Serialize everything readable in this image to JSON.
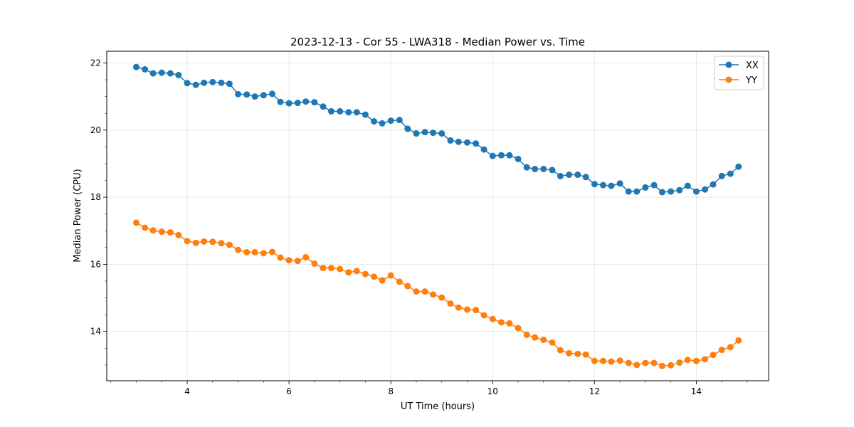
{
  "chart_data": {
    "type": "line",
    "title": "2023-12-13 - Cor 55 - LWA318 - Median Power vs. Time",
    "xlabel": "UT Time (hours)",
    "ylabel": "Median Power (CPU)",
    "xlim": [
      2.42,
      15.42
    ],
    "ylim": [
      12.53,
      22.35
    ],
    "xticks": [
      4,
      6,
      8,
      10,
      12,
      14
    ],
    "yticks": [
      14,
      16,
      18,
      20,
      22
    ],
    "grid": true,
    "legend_position": "top-right",
    "x": [
      3.0,
      3.17,
      3.33,
      3.5,
      3.67,
      3.83,
      4.0,
      4.17,
      4.33,
      4.5,
      4.67,
      4.83,
      5.0,
      5.17,
      5.33,
      5.5,
      5.67,
      5.83,
      6.0,
      6.17,
      6.33,
      6.5,
      6.67,
      6.83,
      7.0,
      7.17,
      7.33,
      7.5,
      7.67,
      7.83,
      8.0,
      8.17,
      8.33,
      8.5,
      8.67,
      8.83,
      9.0,
      9.17,
      9.33,
      9.5,
      9.67,
      9.83,
      10.0,
      10.17,
      10.33,
      10.5,
      10.67,
      10.83,
      11.0,
      11.17,
      11.33,
      11.5,
      11.67,
      11.83,
      12.0,
      12.17,
      12.33,
      12.5,
      12.67,
      12.83,
      13.0,
      13.17,
      13.33,
      13.5,
      13.67,
      13.83,
      14.0,
      14.17,
      14.33,
      14.5,
      14.67,
      14.83
    ],
    "series": [
      {
        "name": "XX",
        "color": "#1f77b4",
        "values": [
          21.88,
          21.81,
          21.69,
          21.71,
          21.69,
          21.64,
          21.4,
          21.35,
          21.41,
          21.43,
          21.41,
          21.38,
          21.07,
          21.06,
          21.0,
          21.04,
          21.08,
          20.84,
          20.8,
          20.81,
          20.85,
          20.83,
          20.7,
          20.56,
          20.56,
          20.53,
          20.53,
          20.46,
          20.26,
          20.2,
          20.28,
          20.3,
          20.04,
          19.9,
          19.94,
          19.92,
          19.9,
          19.69,
          19.65,
          19.63,
          19.6,
          19.42,
          19.23,
          19.25,
          19.25,
          19.14,
          18.89,
          18.84,
          18.84,
          18.81,
          18.63,
          18.67,
          18.67,
          18.6,
          18.39,
          18.36,
          18.34,
          18.41,
          18.17,
          18.17,
          18.29,
          18.36,
          18.15,
          18.17,
          18.21,
          18.34,
          18.17,
          18.23,
          18.38,
          18.63,
          18.7,
          18.91
        ]
      },
      {
        "name": "YY",
        "color": "#ff7f0e",
        "values": [
          17.24,
          17.09,
          17.01,
          16.97,
          16.95,
          16.87,
          16.69,
          16.64,
          16.68,
          16.67,
          16.63,
          16.58,
          16.43,
          16.36,
          16.36,
          16.33,
          16.37,
          16.2,
          16.12,
          16.1,
          16.21,
          16.02,
          15.89,
          15.89,
          15.86,
          15.76,
          15.8,
          15.71,
          15.63,
          15.52,
          15.67,
          15.48,
          15.35,
          15.19,
          15.19,
          15.1,
          15.01,
          14.83,
          14.71,
          14.65,
          14.64,
          14.48,
          14.37,
          14.27,
          14.24,
          14.1,
          13.9,
          13.82,
          13.75,
          13.67,
          13.44,
          13.35,
          13.33,
          13.31,
          13.12,
          13.12,
          13.1,
          13.13,
          13.06,
          13.0,
          13.06,
          13.06,
          12.97,
          12.99,
          13.07,
          13.15,
          13.12,
          13.17,
          13.3,
          13.45,
          13.53,
          13.73
        ]
      }
    ]
  }
}
